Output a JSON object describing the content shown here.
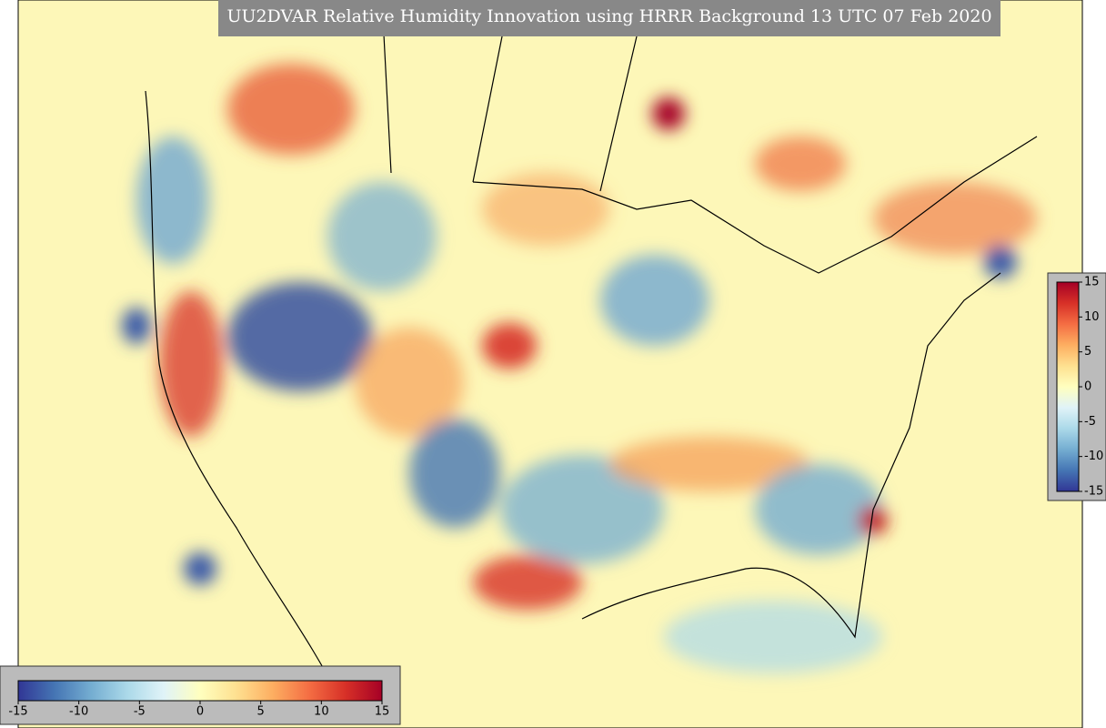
{
  "title": "UU2DVAR Relative Humidity Innovation using HRRR Background 13 UTC 07 Feb 2020",
  "colormap": [
    "#313695",
    "#4575b4",
    "#74add1",
    "#abd9e9",
    "#e0f3f8",
    "#ffffbf",
    "#fee090",
    "#fdae61",
    "#f46d43",
    "#d73027",
    "#a50026"
  ],
  "colorbars": [
    {
      "orientation": "horizontal",
      "range": [
        -15,
        15
      ],
      "ticks": [
        -15,
        -10,
        -5,
        0,
        5,
        10,
        15
      ]
    },
    {
      "orientation": "vertical",
      "range": [
        -15,
        15
      ],
      "ticks": [
        -15,
        -10,
        -5,
        0,
        5,
        10,
        15
      ]
    }
  ]
}
